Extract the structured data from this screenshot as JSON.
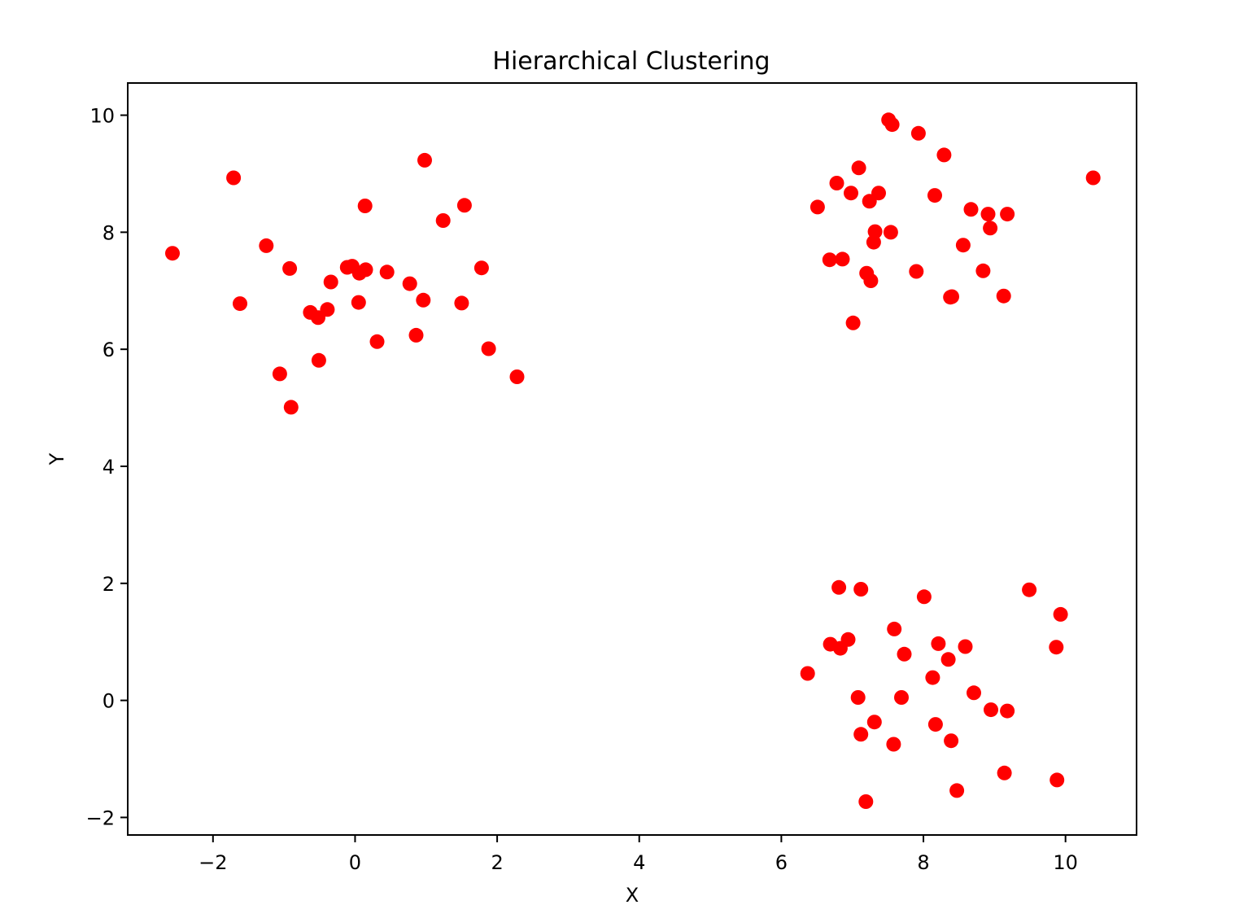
{
  "chart_data": {
    "type": "scatter",
    "title": "Hierarchical Clustering",
    "xlabel": "X",
    "ylabel": "Y",
    "xlim": [
      -3.2,
      11.0
    ],
    "ylim": [
      -2.3,
      10.55
    ],
    "x_ticks": [
      -2,
      0,
      2,
      4,
      6,
      8,
      10
    ],
    "x_tick_labels": [
      "−2",
      "0",
      "2",
      "4",
      "6",
      "8",
      "10"
    ],
    "y_ticks": [
      -2,
      0,
      2,
      4,
      6,
      8,
      10
    ],
    "y_tick_labels": [
      "−2",
      "0",
      "2",
      "4",
      "6",
      "8",
      "10"
    ],
    "grid": false,
    "marker_color": "#ff0000",
    "points": [
      [
        -2.57,
        7.64
      ],
      [
        -1.71,
        8.93
      ],
      [
        -1.62,
        6.78
      ],
      [
        -1.25,
        7.77
      ],
      [
        -0.92,
        7.38
      ],
      [
        -1.06,
        5.58
      ],
      [
        -0.9,
        5.01
      ],
      [
        -0.63,
        6.63
      ],
      [
        -0.52,
        6.54
      ],
      [
        -0.51,
        5.81
      ],
      [
        -0.39,
        6.68
      ],
      [
        -0.34,
        7.15
      ],
      [
        -0.11,
        7.4
      ],
      [
        -0.04,
        7.42
      ],
      [
        0.06,
        7.3
      ],
      [
        0.15,
        7.36
      ],
      [
        0.05,
        6.8
      ],
      [
        0.14,
        8.45
      ],
      [
        0.31,
        6.13
      ],
      [
        0.45,
        7.32
      ],
      [
        0.77,
        7.12
      ],
      [
        0.86,
        6.24
      ],
      [
        0.96,
        6.84
      ],
      [
        0.98,
        9.23
      ],
      [
        1.24,
        8.2
      ],
      [
        1.5,
        6.79
      ],
      [
        1.54,
        8.46
      ],
      [
        1.78,
        7.39
      ],
      [
        1.88,
        6.01
      ],
      [
        2.28,
        5.53
      ],
      [
        6.51,
        8.43
      ],
      [
        6.68,
        7.53
      ],
      [
        6.78,
        8.84
      ],
      [
        6.86,
        7.54
      ],
      [
        6.98,
        8.67
      ],
      [
        7.01,
        6.45
      ],
      [
        7.09,
        9.1
      ],
      [
        7.2,
        7.3
      ],
      [
        7.24,
        8.53
      ],
      [
        7.26,
        7.17
      ],
      [
        7.3,
        7.83
      ],
      [
        7.32,
        8.01
      ],
      [
        7.37,
        8.67
      ],
      [
        7.51,
        9.92
      ],
      [
        7.54,
        8.0
      ],
      [
        7.56,
        9.84
      ],
      [
        7.9,
        7.33
      ],
      [
        7.93,
        9.69
      ],
      [
        8.16,
        8.63
      ],
      [
        8.29,
        9.32
      ],
      [
        8.38,
        6.89
      ],
      [
        8.4,
        6.9
      ],
      [
        8.56,
        7.78
      ],
      [
        8.67,
        8.39
      ],
      [
        8.84,
        7.34
      ],
      [
        8.91,
        8.31
      ],
      [
        8.94,
        8.07
      ],
      [
        9.13,
        6.91
      ],
      [
        9.18,
        8.31
      ],
      [
        10.39,
        8.93
      ],
      [
        6.37,
        0.46
      ],
      [
        6.69,
        0.96
      ],
      [
        6.81,
        1.93
      ],
      [
        6.83,
        0.89
      ],
      [
        6.94,
        1.04
      ],
      [
        7.08,
        0.05
      ],
      [
        7.12,
        1.9
      ],
      [
        7.12,
        -0.58
      ],
      [
        7.19,
        -1.73
      ],
      [
        7.31,
        -0.37
      ],
      [
        7.58,
        -0.75
      ],
      [
        7.59,
        1.22
      ],
      [
        7.69,
        0.05
      ],
      [
        7.73,
        0.79
      ],
      [
        8.01,
        1.77
      ],
      [
        8.13,
        0.39
      ],
      [
        8.17,
        -0.41
      ],
      [
        8.21,
        0.97
      ],
      [
        8.35,
        0.7
      ],
      [
        8.39,
        -0.69
      ],
      [
        8.47,
        -1.54
      ],
      [
        8.59,
        0.92
      ],
      [
        8.71,
        0.13
      ],
      [
        8.95,
        -0.16
      ],
      [
        9.14,
        -1.24
      ],
      [
        9.18,
        -0.18
      ],
      [
        9.49,
        1.89
      ],
      [
        9.87,
        0.91
      ],
      [
        9.88,
        -1.36
      ],
      [
        9.93,
        1.47
      ]
    ]
  }
}
